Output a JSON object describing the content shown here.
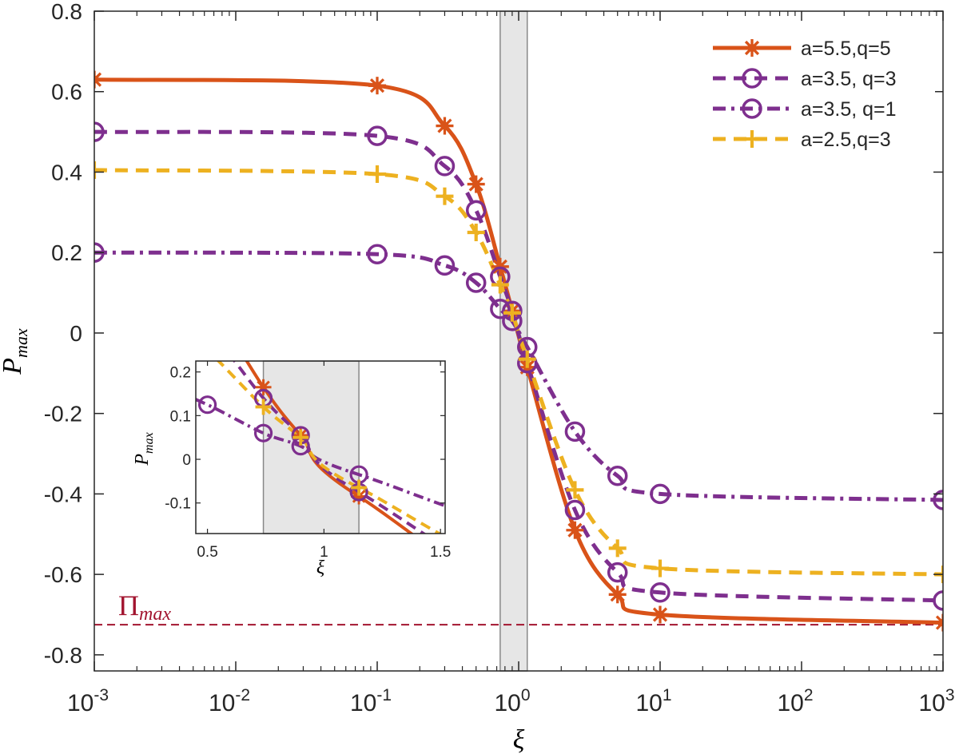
{
  "chart_data": {
    "type": "line",
    "xscale": "log",
    "xlabel": "ξ",
    "ylabel_main": "P",
    "ylabel_sub": "max",
    "xlim": [
      0.001,
      1000
    ],
    "ylim": [
      -0.84,
      0.8
    ],
    "xtick_values": [
      0.001,
      0.01,
      0.1,
      1,
      10,
      100,
      1000
    ],
    "xtick_base": "10",
    "xtick_exps": [
      "-3",
      "-2",
      "-1",
      "0",
      "1",
      "2",
      "3"
    ],
    "yticks": [
      -0.8,
      -0.6,
      -0.4,
      -0.2,
      0,
      0.2,
      0.4,
      0.6,
      0.8
    ],
    "ytick_labels": [
      "-0.8",
      "-0.6",
      "-0.4",
      "-0.2",
      "0",
      "0.2",
      "0.4",
      "0.6",
      "0.8"
    ],
    "shaded_band": [
      0.74,
      1.15
    ],
    "reference_line": {
      "value": -0.725,
      "label_main": "Π",
      "label_sub": "max",
      "color": "#A2142F"
    },
    "series": [
      {
        "name": "a=5.5,q=5",
        "color": "#D95319",
        "style": "solid",
        "marker": "asterisk",
        "x": [
          0.001,
          0.1,
          0.3,
          0.5,
          0.74,
          0.9,
          1.15,
          2.5,
          5,
          10,
          1000
        ],
        "y": [
          0.63,
          0.615,
          0.515,
          0.37,
          0.165,
          0.055,
          -0.085,
          -0.49,
          -0.65,
          -0.7,
          -0.72
        ]
      },
      {
        "name": "a=3.5, q=3",
        "color": "#7E2F8E",
        "style": "dashed",
        "marker": "circle",
        "x": [
          0.001,
          0.1,
          0.3,
          0.5,
          0.74,
          0.9,
          1.15,
          2.5,
          5,
          10,
          1000
        ],
        "y": [
          0.5,
          0.49,
          0.415,
          0.305,
          0.14,
          0.055,
          -0.075,
          -0.44,
          -0.595,
          -0.645,
          -0.665
        ]
      },
      {
        "name": "a=3.5, q=1",
        "color": "#7E2F8E",
        "style": "dashdot",
        "marker": "circle",
        "x": [
          0.001,
          0.1,
          0.3,
          0.5,
          0.74,
          0.9,
          1.15,
          2.5,
          5,
          10,
          1000
        ],
        "y": [
          0.2,
          0.196,
          0.168,
          0.125,
          0.06,
          0.03,
          -0.035,
          -0.245,
          -0.355,
          -0.4,
          -0.415
        ]
      },
      {
        "name": "a=2.5,q=3",
        "color": "#EDB120",
        "style": "dashed",
        "marker": "plus",
        "x": [
          0.001,
          0.1,
          0.3,
          0.5,
          0.74,
          0.9,
          1.15,
          2.5,
          5,
          10,
          1000
        ],
        "y": [
          0.405,
          0.395,
          0.34,
          0.25,
          0.12,
          0.05,
          -0.065,
          -0.39,
          -0.535,
          -0.585,
          -0.6
        ]
      }
    ],
    "legend_position": "top-right",
    "inset": {
      "xscale": "linear",
      "xlim": [
        0.45,
        1.52
      ],
      "ylim": [
        -0.17,
        0.225
      ],
      "xticks": [
        0.5,
        1,
        1.5
      ],
      "xtick_labels": [
        "0.5",
        "1",
        "1.5"
      ],
      "yticks": [
        -0.1,
        0,
        0.1,
        0.2
      ],
      "ytick_labels": [
        "-0.1",
        "0",
        "0.1",
        "0.2"
      ],
      "xlabel": "ξ",
      "ylabel_main": "P",
      "ylabel_sub": "max",
      "shaded_band": [
        0.74,
        1.15
      ]
    }
  }
}
